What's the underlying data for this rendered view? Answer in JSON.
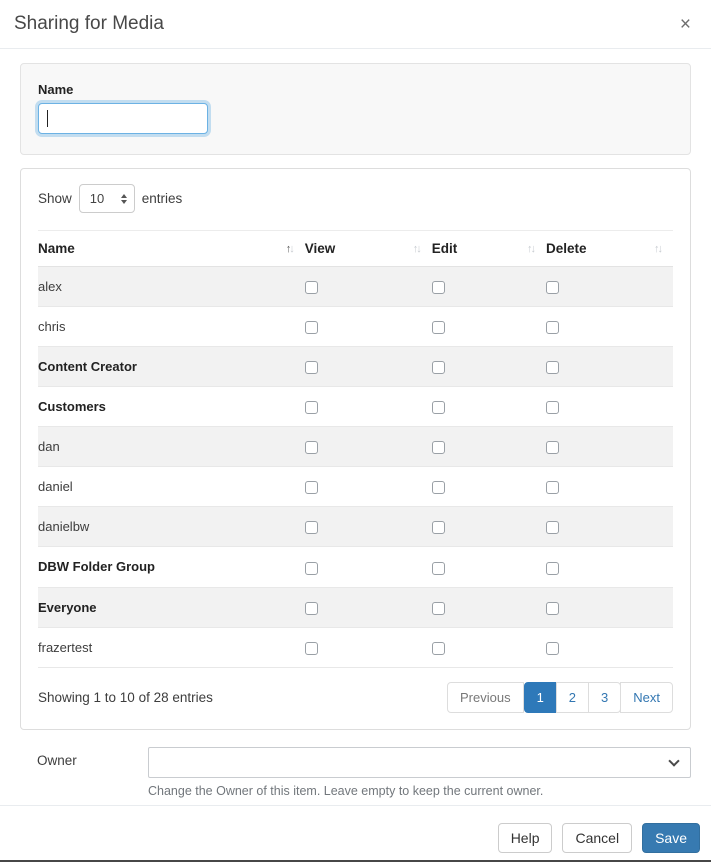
{
  "modal": {
    "title": "Sharing for Media",
    "close_label": "×"
  },
  "name_section": {
    "label": "Name",
    "value": "",
    "placeholder": ""
  },
  "table_section": {
    "show_label": "Show",
    "entries_label": "entries",
    "page_length": "10",
    "columns": [
      {
        "label": "Name",
        "sort": "asc"
      },
      {
        "label": "View",
        "sort": "none"
      },
      {
        "label": "Edit",
        "sort": "none"
      },
      {
        "label": "Delete",
        "sort": "none"
      }
    ],
    "rows": [
      {
        "name": "alex",
        "bold": false,
        "view": false,
        "edit": false,
        "delete": false
      },
      {
        "name": "chris",
        "bold": false,
        "view": false,
        "edit": false,
        "delete": false
      },
      {
        "name": "Content Creator",
        "bold": true,
        "view": false,
        "edit": false,
        "delete": false
      },
      {
        "name": "Customers",
        "bold": true,
        "view": false,
        "edit": false,
        "delete": false
      },
      {
        "name": "dan",
        "bold": false,
        "view": false,
        "edit": false,
        "delete": false
      },
      {
        "name": "daniel",
        "bold": false,
        "view": false,
        "edit": false,
        "delete": false
      },
      {
        "name": "danielbw",
        "bold": false,
        "view": false,
        "edit": false,
        "delete": false
      },
      {
        "name": "DBW Folder Group",
        "bold": true,
        "view": false,
        "edit": false,
        "delete": false
      },
      {
        "name": "Everyone",
        "bold": true,
        "view": false,
        "edit": false,
        "delete": false
      },
      {
        "name": "frazertest",
        "bold": false,
        "view": false,
        "edit": false,
        "delete": false
      }
    ],
    "summary": "Showing 1 to 10 of 28 entries",
    "pagination": {
      "previous_label": "Previous",
      "pages": [
        "1",
        "2",
        "3"
      ],
      "active_page": "1",
      "next_label": "Next"
    }
  },
  "owner_section": {
    "label": "Owner",
    "selected_value": "",
    "help_text": "Change the Owner of this item. Leave empty to keep the current owner."
  },
  "footer": {
    "help_label": "Help",
    "cancel_label": "Cancel",
    "save_label": "Save"
  },
  "colors": {
    "accent_blue": "#377ab1",
    "link_blue": "#3377b2",
    "active_page_bg": "#2e79b9",
    "focus_ring": "#80bde6",
    "stripe_gray": "#f2f2f2"
  }
}
